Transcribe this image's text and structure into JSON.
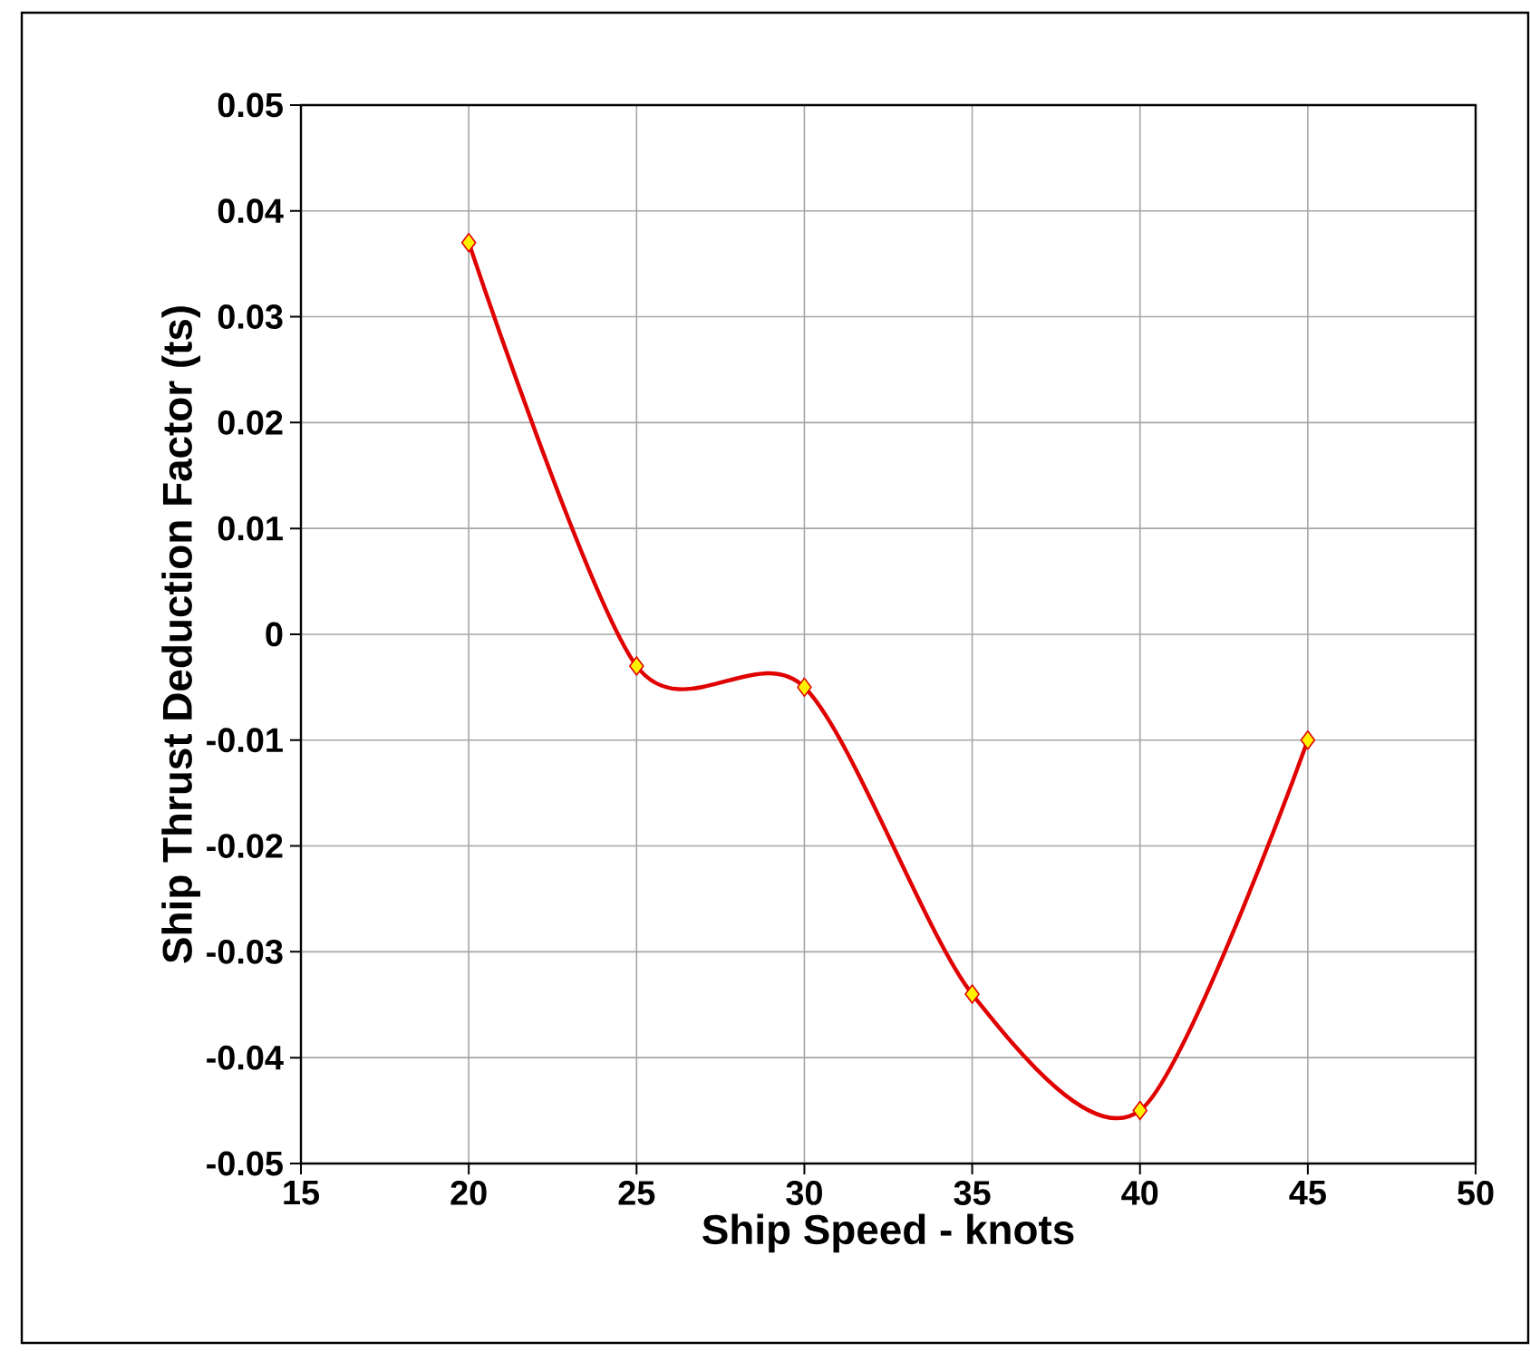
{
  "chart_data": {
    "type": "line",
    "xlabel": "Ship Speed - knots",
    "ylabel": "Ship Thrust Deduction Factor (ts)",
    "x": [
      20,
      25,
      30,
      35,
      40,
      45
    ],
    "series": [
      {
        "color": "#e00000",
        "values": [
          0.037,
          -0.003,
          -0.005,
          -0.034,
          -0.045,
          -0.01
        ]
      }
    ],
    "xlim": [
      15,
      50
    ],
    "ylim": [
      -0.05,
      0.05
    ],
    "xticks": [
      15,
      20,
      25,
      30,
      35,
      40,
      45,
      50
    ],
    "yticks": [
      -0.05,
      -0.04,
      -0.03,
      -0.02,
      -0.01,
      0,
      0.01,
      0.02,
      0.03,
      0.04,
      0.05
    ],
    "grid": true,
    "marker": "diamond",
    "line_style": "solid"
  }
}
